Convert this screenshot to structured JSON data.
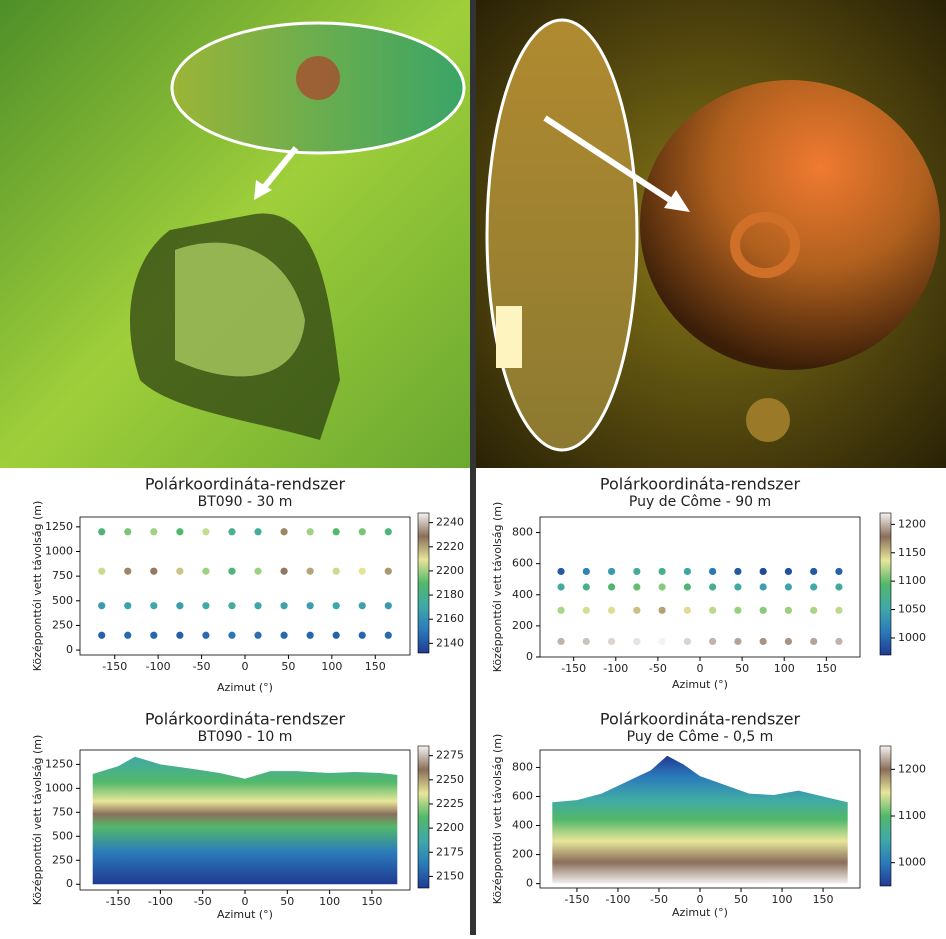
{
  "chart_data": [
    {
      "type": "scatter",
      "title": "Polárkoordináta-rendszer",
      "subtitle": "BT090 - 30 m",
      "x_label": "Azimut (°)",
      "y_label": "Középponttól vett távolság (m)",
      "xlim": [
        -190,
        190
      ],
      "ylim": [
        -50,
        1350
      ],
      "xticks": [
        -150,
        -100,
        -50,
        0,
        50,
        100,
        150
      ],
      "yticks": [
        0,
        250,
        500,
        750,
        1000,
        1250
      ],
      "clim": [
        2132,
        2248
      ],
      "cticks": [
        2140,
        2160,
        2180,
        2200,
        2220,
        2240
      ],
      "colormap": [
        "#1f3a93",
        "#2b7bba",
        "#3fa9a8",
        "#52b86a",
        "#e8e69a",
        "#8a6f5a",
        "#f5f2f2"
      ],
      "x": [
        -165,
        -135,
        -105,
        -75,
        -45,
        -15,
        15,
        45,
        75,
        105,
        135,
        165,
        -165,
        -135,
        -105,
        -75,
        -45,
        -15,
        15,
        45,
        75,
        105,
        135,
        165,
        -165,
        -135,
        -105,
        -75,
        -45,
        -15,
        15,
        45,
        75,
        105,
        135,
        165,
        -165,
        -135,
        -105,
        -75,
        -45,
        -15,
        15,
        45,
        75,
        105,
        135,
        165
      ],
      "y": [
        150,
        150,
        150,
        150,
        150,
        150,
        150,
        150,
        150,
        150,
        150,
        150,
        450,
        450,
        450,
        450,
        450,
        450,
        450,
        450,
        450,
        450,
        450,
        450,
        800,
        800,
        800,
        800,
        800,
        800,
        800,
        800,
        800,
        800,
        800,
        800,
        1200,
        1200,
        1200,
        1200,
        1200,
        1200,
        1200,
        1200,
        1200,
        1200,
        1200,
        1200
      ],
      "c": [
        2144,
        2146,
        2145,
        2143,
        2147,
        2150,
        2148,
        2146,
        2145,
        2144,
        2145,
        2146,
        2165,
        2168,
        2170,
        2166,
        2172,
        2175,
        2170,
        2168,
        2166,
        2170,
        2168,
        2165,
        2205,
        2225,
        2230,
        2215,
        2200,
        2185,
        2200,
        2230,
        2220,
        2205,
        2210,
        2222,
        2185,
        2195,
        2200,
        2190,
        2205,
        2180,
        2175,
        2225,
        2200,
        2190,
        2195,
        2185
      ]
    },
    {
      "type": "scatter",
      "title": "Polárkoordináta-rendszer",
      "subtitle": "Puy de Côme - 90 m",
      "x_label": "Azimut (°)",
      "y_label": "Középponttól vett távolság (m)",
      "xlim": [
        -190,
        190
      ],
      "ylim": [
        0,
        900
      ],
      "xticks": [
        -150,
        -100,
        -50,
        0,
        50,
        100,
        150
      ],
      "yticks": [
        0,
        200,
        400,
        600,
        800
      ],
      "clim": [
        970,
        1220
      ],
      "cticks": [
        1000,
        1050,
        1100,
        1150,
        1200
      ],
      "colormap": [
        "#1f3a93",
        "#2b7bba",
        "#3fa9a8",
        "#52b86a",
        "#e8e69a",
        "#8a6f5a",
        "#f5f2f2"
      ],
      "x": [
        -165,
        -135,
        -105,
        -75,
        -45,
        -15,
        15,
        45,
        75,
        105,
        135,
        165,
        -165,
        -135,
        -105,
        -75,
        -45,
        -15,
        15,
        45,
        75,
        105,
        135,
        165,
        -165,
        -135,
        -105,
        -75,
        -45,
        -15,
        15,
        45,
        75,
        105,
        135,
        165,
        -165,
        -135,
        -105,
        -75,
        -45,
        -15,
        15,
        45,
        75,
        105,
        135,
        165
      ],
      "y": [
        100,
        100,
        100,
        100,
        100,
        100,
        100,
        100,
        100,
        100,
        100,
        100,
        300,
        300,
        300,
        300,
        300,
        300,
        300,
        300,
        300,
        300,
        300,
        300,
        450,
        450,
        450,
        450,
        450,
        450,
        450,
        450,
        450,
        450,
        450,
        450,
        550,
        550,
        550,
        550,
        550,
        550,
        550,
        550,
        550,
        550,
        550,
        550
      ],
      "c": [
        1200,
        1205,
        1210,
        1215,
        1220,
        1210,
        1200,
        1195,
        1190,
        1190,
        1195,
        1200,
        1120,
        1130,
        1140,
        1150,
        1160,
        1140,
        1125,
        1115,
        1110,
        1115,
        1120,
        1125,
        1060,
        1075,
        1090,
        1100,
        1110,
        1090,
        1070,
        1055,
        1045,
        1050,
        1055,
        1060,
        990,
        1020,
        1040,
        1060,
        1070,
        1050,
        1010,
        990,
        980,
        985,
        990,
        995
      ]
    },
    {
      "type": "area",
      "title": "Polárkoordináta-rendszer",
      "subtitle": "BT090 - 10 m",
      "x_label": "Azimut (°)",
      "y_label": "Középponttól vett távolság (m)",
      "xlim": [
        -195,
        195
      ],
      "ylim": [
        -60,
        1400
      ],
      "xticks": [
        -150,
        -100,
        -50,
        0,
        50,
        100,
        150
      ],
      "yticks": [
        0,
        250,
        500,
        750,
        1000,
        1250
      ],
      "clim": [
        2138,
        2285
      ],
      "cticks": [
        2150,
        2175,
        2200,
        2225,
        2250,
        2275
      ],
      "colormap": [
        "#1f3a93",
        "#2b7bba",
        "#3fa9a8",
        "#52b86a",
        "#e8e69a",
        "#8a6f5a",
        "#f5f2f2"
      ],
      "x": [
        -180,
        -150,
        -130,
        -100,
        -60,
        -30,
        0,
        30,
        60,
        100,
        130,
        160,
        180
      ],
      "values": [
        1150,
        1230,
        1330,
        1250,
        1200,
        1160,
        1100,
        1180,
        1180,
        1160,
        1170,
        1160,
        1140
      ]
    },
    {
      "type": "area",
      "title": "Polárkoordináta-rendszer",
      "subtitle": "Puy de Côme - 0,5 m",
      "x_label": "Azimut (°)",
      "y_label": "Középponttól vett távolság (m)",
      "xlim": [
        -195,
        195
      ],
      "ylim": [
        -30,
        920
      ],
      "xticks": [
        -150,
        -100,
        -50,
        0,
        50,
        100,
        150
      ],
      "yticks": [
        0,
        200,
        400,
        600,
        800
      ],
      "clim": [
        950,
        1250
      ],
      "cticks": [
        1000,
        1100,
        1200
      ],
      "colormap": [
        "#1f3a93",
        "#2b7bba",
        "#3fa9a8",
        "#52b86a",
        "#e8e69a",
        "#8a6f5a",
        "#f5f2f2"
      ],
      "x": [
        -180,
        -150,
        -120,
        -90,
        -60,
        -40,
        -20,
        0,
        30,
        60,
        90,
        120,
        150,
        180
      ],
      "values": [
        560,
        575,
        620,
        700,
        780,
        880,
        820,
        740,
        680,
        620,
        610,
        640,
        600,
        560
      ]
    }
  ]
}
